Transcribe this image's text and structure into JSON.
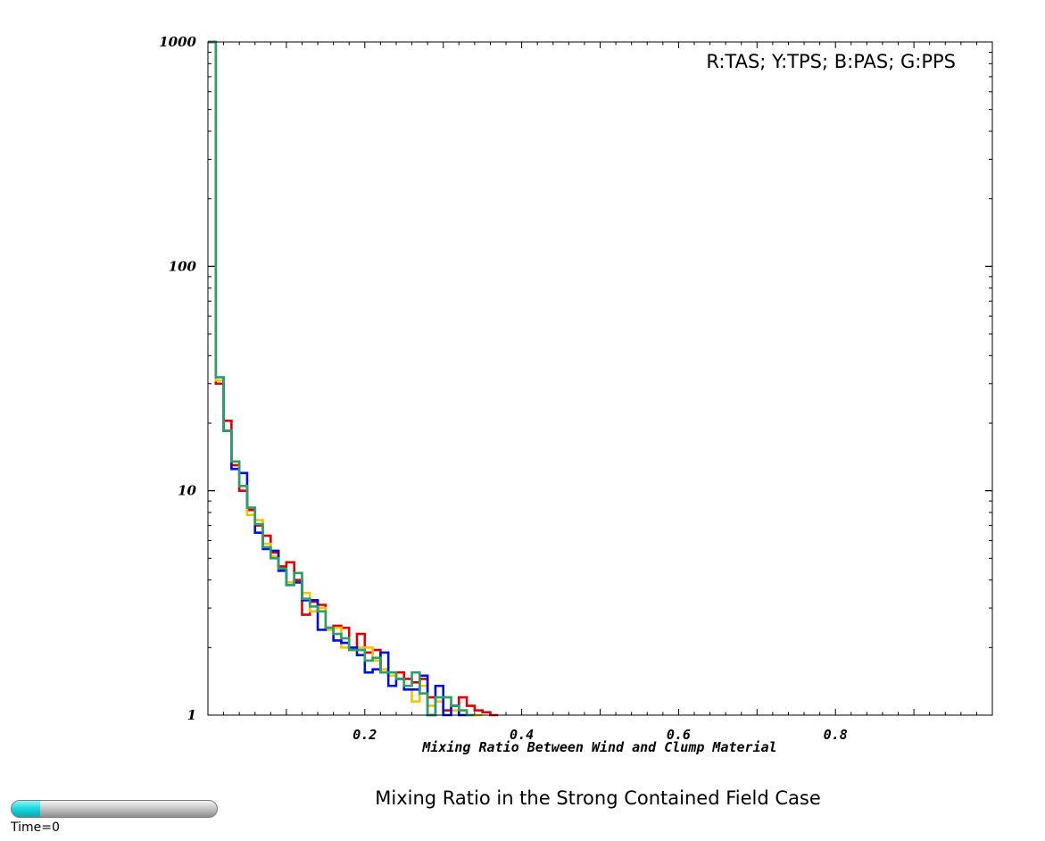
{
  "chart_data": {
    "type": "line",
    "xlabel": "Mixing Ratio Between Wind and Clump Material",
    "ylabel": "",
    "xlim": [
      0,
      1
    ],
    "ylim": [
      1,
      1000
    ],
    "yscale": "log",
    "x_ticks": [
      0.2,
      0.4,
      0.6,
      0.8
    ],
    "x_tick_labels": [
      "0.2",
      "0.4",
      "0.6",
      "0.8"
    ],
    "y_ticks": [
      1,
      10,
      100,
      1000
    ],
    "y_tick_labels": [
      "1",
      "10",
      "100",
      "1000"
    ],
    "grid": false,
    "legend_text": "R:TAS; Y:TPS; B:PAS; G:PPS",
    "legend_position": "top-right",
    "series": [
      {
        "color": "#e00000",
        "x": [
          0.01,
          0.02,
          0.03,
          0.04,
          0.05,
          0.06,
          0.07,
          0.08,
          0.09,
          0.1,
          0.11,
          0.12,
          0.13,
          0.14,
          0.15,
          0.16,
          0.17,
          0.18,
          0.19,
          0.2,
          0.21,
          0.22,
          0.23,
          0.24,
          0.25,
          0.26,
          0.27,
          0.28,
          0.29,
          0.3,
          0.31,
          0.32,
          0.33,
          0.34,
          0.35,
          0.36,
          0.37
        ],
        "values": [
          1000,
          30,
          20.5,
          13,
          10,
          8.2,
          7,
          6.3,
          5.3,
          4.6,
          4.8,
          4.0,
          2.8,
          3.2,
          3.1,
          2.45,
          2.5,
          2.45,
          2.0,
          2.3,
          1.9,
          1.95,
          1.55,
          1.5,
          1.55,
          1.45,
          1.4,
          1.45,
          1.2,
          1.15,
          1.05,
          1.1,
          1.2,
          1.1,
          1.05,
          1.03,
          1.0
        ]
      },
      {
        "color": "#f5c400",
        "x": [
          0.01,
          0.02,
          0.03,
          0.04,
          0.05,
          0.06,
          0.07,
          0.08,
          0.09,
          0.1,
          0.11,
          0.12,
          0.13,
          0.14,
          0.15,
          0.16,
          0.17,
          0.18,
          0.19,
          0.2,
          0.21,
          0.22,
          0.23,
          0.24,
          0.25,
          0.26,
          0.27,
          0.28,
          0.29,
          0.3,
          0.31,
          0.32,
          0.33,
          0.34,
          0.35
        ],
        "values": [
          1000,
          31,
          18.5,
          13.5,
          10.5,
          7.8,
          7.4,
          5.8,
          5.1,
          4.4,
          3.9,
          4.3,
          3.5,
          2.9,
          3.0,
          2.4,
          2.45,
          2.0,
          2.0,
          2.0,
          2.0,
          1.75,
          1.6,
          1.5,
          1.45,
          1.3,
          1.15,
          1.35,
          1.1,
          1.15,
          1.2,
          1.05,
          1.05,
          1.0,
          1.0
        ]
      },
      {
        "color": "#0010e0",
        "x": [
          0.01,
          0.02,
          0.03,
          0.04,
          0.05,
          0.06,
          0.07,
          0.08,
          0.09,
          0.1,
          0.11,
          0.12,
          0.13,
          0.14,
          0.15,
          0.16,
          0.17,
          0.18,
          0.19,
          0.2,
          0.21,
          0.22,
          0.23,
          0.24,
          0.25,
          0.26,
          0.27,
          0.28,
          0.29,
          0.3,
          0.31,
          0.32,
          0.33
        ],
        "values": [
          1000,
          32,
          18.5,
          12.5,
          12,
          8.4,
          6.5,
          5.5,
          5.4,
          4.4,
          3.8,
          3.9,
          3.25,
          3.25,
          2.4,
          2.45,
          2.15,
          2.1,
          2.0,
          1.85,
          1.55,
          1.6,
          1.9,
          1.35,
          1.45,
          1.3,
          1.3,
          1.5,
          1.0,
          1.35,
          1.0,
          1.1,
          1.0
        ]
      },
      {
        "color": "#2e9e6a",
        "x": [
          0.01,
          0.02,
          0.03,
          0.04,
          0.05,
          0.06,
          0.07,
          0.08,
          0.09,
          0.1,
          0.11,
          0.12,
          0.13,
          0.14,
          0.15,
          0.16,
          0.17,
          0.18,
          0.19,
          0.2,
          0.21,
          0.22,
          0.23,
          0.24,
          0.25,
          0.26,
          0.27,
          0.28,
          0.29,
          0.3,
          0.31,
          0.32,
          0.33,
          0.34
        ],
        "values": [
          1000,
          32,
          18.5,
          13.5,
          10.5,
          8.4,
          7.1,
          5.6,
          5.0,
          4.5,
          3.8,
          4.3,
          3.3,
          3.05,
          2.9,
          2.45,
          2.3,
          2.2,
          1.95,
          1.95,
          1.75,
          1.8,
          1.55,
          1.55,
          1.45,
          1.35,
          1.55,
          1.25,
          1.0,
          1.2,
          1.2,
          1.1,
          1.05,
          1.0
        ]
      }
    ]
  },
  "caption": "Mixing Ratio in the Strong Contained Field Case",
  "time_slider": {
    "label": "Time=0",
    "progress": 0.14,
    "fill_color": "#1cd9e3"
  }
}
